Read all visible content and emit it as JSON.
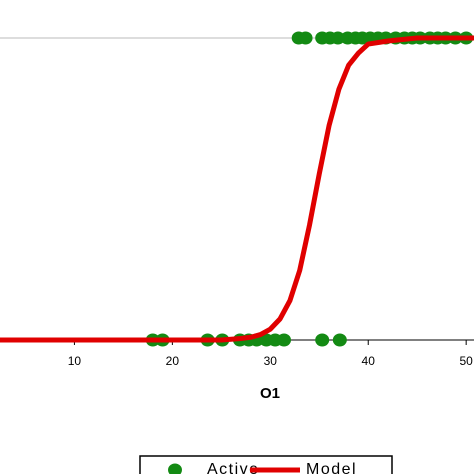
{
  "chart_data": {
    "type": "scatter",
    "x_label": "O1",
    "xlim": [
      2.4,
      50.8
    ],
    "xticks": [
      10,
      20,
      30,
      40,
      50
    ],
    "ylim": [
      0,
      1
    ],
    "yticks": [
      0,
      1
    ],
    "grid": true,
    "legend": "bottom",
    "series": [
      {
        "name": "Active",
        "type": "scatter",
        "color": "#138a13",
        "x": [
          32.9,
          33.6,
          35.3,
          36.1,
          36.9,
          37.9,
          38.7,
          39.4,
          40.2,
          41.0,
          41.8,
          42.8,
          43.7,
          44.5,
          45.3,
          46.3,
          47.1,
          47.9,
          48.9,
          50.0,
          18.0,
          19.0,
          23.6,
          25.1,
          26.9,
          27.8,
          28.6,
          29.6,
          30.5,
          31.4,
          35.3,
          37.1
        ],
        "values": [
          1,
          1,
          1,
          1,
          1,
          1,
          1,
          1,
          1,
          1,
          1,
          1,
          1,
          1,
          1,
          1,
          1,
          1,
          1,
          1,
          0,
          0,
          0,
          0,
          0,
          0,
          0,
          0,
          0,
          0,
          0,
          0
        ]
      },
      {
        "name": "Model",
        "type": "line",
        "color": "#e00000",
        "x": [
          2.4,
          10,
          20,
          25,
          27,
          28,
          29,
          30,
          31,
          32,
          33,
          34,
          35,
          36,
          37,
          38,
          39,
          40,
          42,
          45,
          50.8
        ],
        "values": [
          0,
          0,
          0,
          0,
          0.005,
          0.009,
          0.018,
          0.036,
          0.07,
          0.13,
          0.23,
          0.38,
          0.55,
          0.71,
          0.83,
          0.91,
          0.95,
          0.98,
          0.99,
          1,
          1
        ]
      }
    ]
  }
}
